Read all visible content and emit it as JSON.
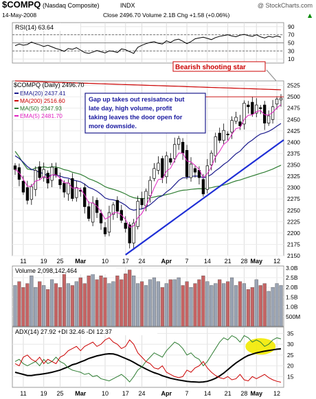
{
  "header": {
    "symbol": "$COMPQ",
    "name": "(Nasdaq Composite)",
    "exchange": "INDX",
    "watermark": "@ StockCharts.com",
    "date": "14-May-2008",
    "quote": "Close 2496.70  Volume 2.1B  Chg +1.58 (+0.06%)",
    "quote_arrow": "▲"
  },
  "colors": {
    "ema20": "#1a1a8c",
    "ma200": "#cc0000",
    "ma50": "#2e7d32",
    "ema5": "#e020c0",
    "trendline": "#1f2fd6",
    "annotation_box": "#1a1a8c",
    "annotation_text": "#1a1aa0",
    "vol_up": "#9aa4b4",
    "vol_down": "#c56464",
    "highlight": "#f2ea00"
  },
  "chart_data": [
    {
      "type": "line",
      "panel": "rsi",
      "title": "RSI(14) 63.64",
      "yticks": [
        10,
        30,
        50,
        70,
        90
      ],
      "ylim": [
        0,
        100
      ],
      "reference_lines": [
        30,
        50,
        70
      ],
      "series": [
        {
          "name": "RSI(14)",
          "values": [
            43,
            47,
            44,
            46,
            52,
            48,
            45,
            41,
            44,
            40,
            36,
            33,
            29,
            36,
            34,
            38,
            32,
            26,
            24,
            27,
            31,
            28,
            25,
            30,
            29,
            26,
            35,
            33,
            28,
            24,
            39,
            44,
            48,
            51,
            53,
            49,
            47,
            55,
            51,
            57,
            59,
            54,
            48,
            53,
            60,
            62,
            64,
            61,
            58,
            63,
            66,
            68,
            70,
            67,
            65,
            69,
            71,
            68,
            66,
            70,
            65,
            62,
            66,
            64,
            67,
            64
          ]
        }
      ]
    },
    {
      "type": "candlestick",
      "panel": "price",
      "title": "$COMPQ (Daily) 2496.70",
      "ylim": [
        2150,
        2535
      ],
      "yticks": [
        2150,
        2175,
        2200,
        2225,
        2250,
        2275,
        2300,
        2325,
        2350,
        2375,
        2400,
        2425,
        2450,
        2475,
        2500,
        2525
      ],
      "series_legend": [
        {
          "name": "EMA(20)",
          "value": "2437.41"
        },
        {
          "name": "MA(200)",
          "value": "2516.60"
        },
        {
          "name": "MA(50)",
          "value": "2347.93"
        },
        {
          "name": "EMA(5)",
          "value": "2481.70"
        }
      ],
      "close": [
        2340,
        2318,
        2290,
        2272,
        2302,
        2338,
        2322,
        2340,
        2310,
        2345,
        2328,
        2306,
        2290,
        2310,
        2276,
        2300,
        2292,
        2258,
        2232,
        2266,
        2245,
        2222,
        2198,
        2245,
        2262,
        2248,
        2228,
        2210,
        2178,
        2222,
        2270,
        2262,
        2292,
        2316,
        2342,
        2354,
        2322,
        2370,
        2356,
        2395,
        2408,
        2376,
        2324,
        2352,
        2334,
        2322,
        2286,
        2348,
        2376,
        2412,
        2404,
        2426,
        2416,
        2448,
        2455,
        2436,
        2486,
        2478,
        2462,
        2482,
        2474,
        2442,
        2458,
        2478,
        2495,
        2497
      ],
      "annotations": [
        "Bearish shooting star",
        "Gap up takes out resisatnce but late day, high volume, profit taking leaves the door open for more downside."
      ]
    },
    {
      "type": "bar",
      "panel": "volume",
      "title": "Volume 2,098,142,464",
      "yticks_labels": [
        "500M",
        "1.0B",
        "1.5B",
        "2.0B",
        "2.5B",
        "3.0B"
      ],
      "ylim": [
        0,
        3.1
      ],
      "unit": "B",
      "values": [
        2.1,
        2.3,
        2.0,
        2.2,
        2.6,
        2.0,
        2.3,
        2.1,
        1.9,
        2.4,
        2.2,
        2.0,
        2.7,
        2.2,
        2.1,
        2.3,
        2.5,
        2.2,
        2.6,
        2.8,
        2.4,
        2.6,
        2.5,
        2.2,
        2.3,
        2.6,
        2.4,
        2.7,
        2.9,
        2.6,
        2.2,
        2.3,
        2.1,
        2.4,
        2.5,
        2.3,
        2.0,
        2.2,
        2.4,
        2.4,
        2.5,
        2.1,
        2.3,
        2.0,
        2.2,
        2.4,
        2.6,
        2.3,
        2.1,
        2.2,
        2.4,
        2.2,
        2.3,
        2.5,
        2.1,
        2.3,
        2.2,
        1.9,
        2.0,
        2.4,
        2.1,
        2.2,
        1.8,
        2.0,
        2.2,
        2.1
      ]
    },
    {
      "type": "line",
      "panel": "adx",
      "title": "ADX(14) 27.92  +DI 32.46  -DI 12.37",
      "yticks": [
        15,
        20,
        25,
        30,
        35
      ],
      "ylim": [
        10,
        38
      ],
      "series": [
        {
          "name": "ADX(14)",
          "values": [
            17,
            16.5,
            16,
            15.5,
            15.5,
            15.8,
            16,
            16.3,
            16.6,
            17,
            17.5,
            18,
            18.8,
            19.5,
            20.5,
            21,
            21.8,
            22.5,
            23.4,
            24,
            24.6,
            25,
            25.4,
            25.6,
            25.5,
            25,
            24.2,
            23.4,
            22.6,
            21.6,
            20.5,
            19.5,
            18.5,
            17.6,
            16.8,
            16.2,
            15.4,
            14.8,
            14.2,
            13.8,
            13.4,
            13.1,
            12.8,
            12.6,
            12.5,
            12.4,
            12.5,
            12.8,
            13.4,
            14.2,
            15.3,
            16.6,
            18.2,
            19.8,
            21.3,
            22.6,
            23.8,
            24.8,
            25.4,
            26,
            26.4,
            26.8,
            27.1,
            27.4,
            27.7,
            27.9
          ]
        },
        {
          "name": "+DI",
          "values": [
            22,
            23,
            21,
            20,
            21,
            22,
            20,
            23,
            21,
            22,
            24,
            22,
            21,
            19,
            18,
            17.5,
            17,
            16,
            16.5,
            15,
            15.5,
            14,
            13.5,
            13,
            14,
            15,
            16,
            14.5,
            12.5,
            15,
            18,
            19.5,
            22,
            24,
            26,
            25,
            24,
            27,
            29,
            31,
            30,
            28,
            25,
            26,
            24,
            23,
            20,
            22,
            25,
            28,
            31,
            33,
            32,
            34,
            33,
            31,
            34,
            33,
            31,
            32,
            31,
            29,
            30,
            32,
            33,
            32.5
          ]
        },
        {
          "name": "-DI",
          "values": [
            21,
            20,
            24,
            25,
            23,
            22,
            24,
            21,
            23,
            22,
            21,
            24,
            25,
            27,
            28,
            29,
            27,
            29,
            30,
            31,
            29,
            30,
            32,
            33,
            31,
            30,
            28,
            29,
            32,
            30,
            26,
            24,
            22,
            21,
            19,
            18.5,
            20,
            17,
            16,
            15,
            14.5,
            15,
            18,
            17,
            19,
            20,
            22,
            19,
            17,
            15.5,
            14.5,
            14,
            15,
            13.5,
            14,
            16,
            13.5,
            13,
            15,
            14,
            15,
            16,
            14.5,
            13.5,
            12.8,
            12.4
          ]
        }
      ]
    }
  ],
  "x_axis": {
    "labels": [
      {
        "text": "11",
        "i": 2
      },
      {
        "text": "19",
        "i": 7
      },
      {
        "text": "25",
        "i": 11
      },
      {
        "text": "Mar",
        "i": 16,
        "bold": true
      },
      {
        "text": "10",
        "i": 22
      },
      {
        "text": "17",
        "i": 27
      },
      {
        "text": "24",
        "i": 31
      },
      {
        "text": "Apr",
        "i": 37,
        "bold": true
      },
      {
        "text": "7",
        "i": 42
      },
      {
        "text": "14",
        "i": 47
      },
      {
        "text": "21",
        "i": 52
      },
      {
        "text": "28",
        "i": 56
      },
      {
        "text": "May",
        "i": 59,
        "bold": true
      },
      {
        "text": "12",
        "i": 64
      }
    ]
  }
}
